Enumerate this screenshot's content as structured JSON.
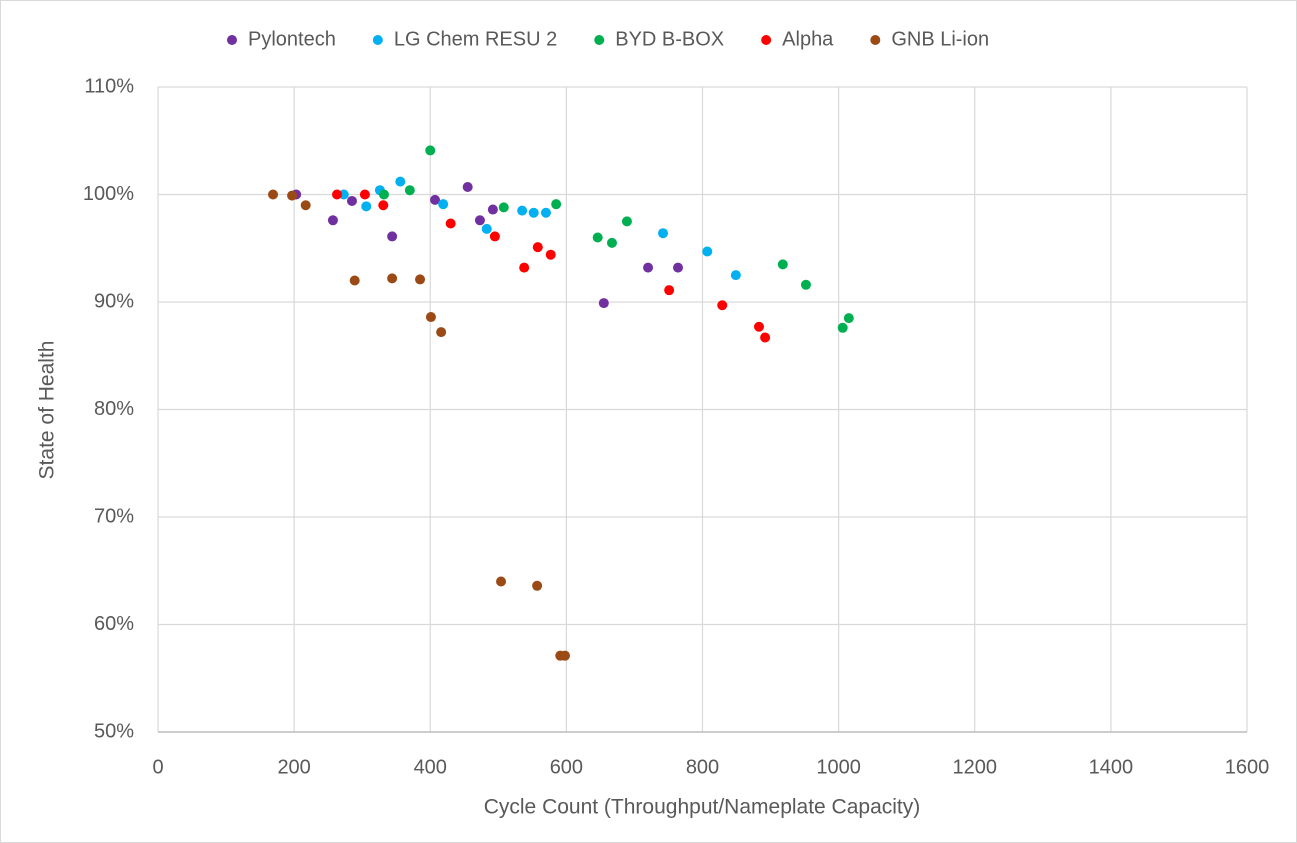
{
  "chart_data": {
    "type": "scatter",
    "xlabel": "Cycle Count (Throughput/Nameplate Capacity)",
    "ylabel": "State of Health",
    "xlim": [
      0,
      1600
    ],
    "xticks": [
      0,
      200,
      400,
      600,
      800,
      1000,
      1200,
      1400,
      1600
    ],
    "ylim": [
      50,
      110
    ],
    "yticks": [
      {
        "value": 50,
        "label": "50%"
      },
      {
        "value": 60,
        "label": "60%"
      },
      {
        "value": 70,
        "label": "70%"
      },
      {
        "value": 80,
        "label": "80%"
      },
      {
        "value": 90,
        "label": "90%"
      },
      {
        "value": 100,
        "label": "100%"
      },
      {
        "value": 110,
        "label": "110%"
      }
    ],
    "grid": true,
    "legend": "top",
    "series": [
      {
        "name": "Pylontech",
        "color": "#7030a0",
        "x": [
          203,
          257,
          285,
          344,
          407,
          455,
          473,
          492,
          655,
          720,
          764
        ],
        "values": [
          100.0,
          97.6,
          99.4,
          96.1,
          99.5,
          100.7,
          97.6,
          98.6,
          89.9,
          93.2,
          93.2
        ]
      },
      {
        "name": "LG Chem RESU 2",
        "color": "#00b0f0",
        "x": [
          273,
          306,
          326,
          356,
          419,
          483,
          535,
          552,
          570,
          742,
          807,
          849
        ],
        "values": [
          100.0,
          98.9,
          100.4,
          101.2,
          99.1,
          96.8,
          98.5,
          98.3,
          98.3,
          96.4,
          94.7,
          92.5
        ]
      },
      {
        "name": "BYD B-BOX",
        "color": "#00b050",
        "x": [
          332,
          400,
          370,
          508,
          585,
          646,
          667,
          689,
          918,
          952,
          1006,
          1015
        ],
        "values": [
          100.0,
          104.1,
          100.4,
          98.8,
          99.1,
          96.0,
          95.5,
          97.5,
          93.5,
          91.6,
          87.6,
          88.5
        ]
      },
      {
        "name": "Alpha",
        "color": "#ff0000",
        "x": [
          263,
          304,
          331,
          430,
          495,
          538,
          558,
          577,
          751,
          829,
          883,
          892
        ],
        "values": [
          100.0,
          100.0,
          99.0,
          97.3,
          96.1,
          93.2,
          95.1,
          94.4,
          91.1,
          89.7,
          87.7,
          86.7
        ]
      },
      {
        "name": "GNB Li-ion",
        "color": "#9c4a15",
        "x": [
          169,
          197,
          217,
          289,
          344,
          385,
          401,
          416,
          504,
          557,
          591,
          598
        ],
        "values": [
          100.0,
          99.9,
          99.0,
          92.0,
          92.2,
          92.1,
          88.6,
          87.2,
          64.0,
          63.6,
          57.1,
          57.1
        ]
      }
    ]
  }
}
